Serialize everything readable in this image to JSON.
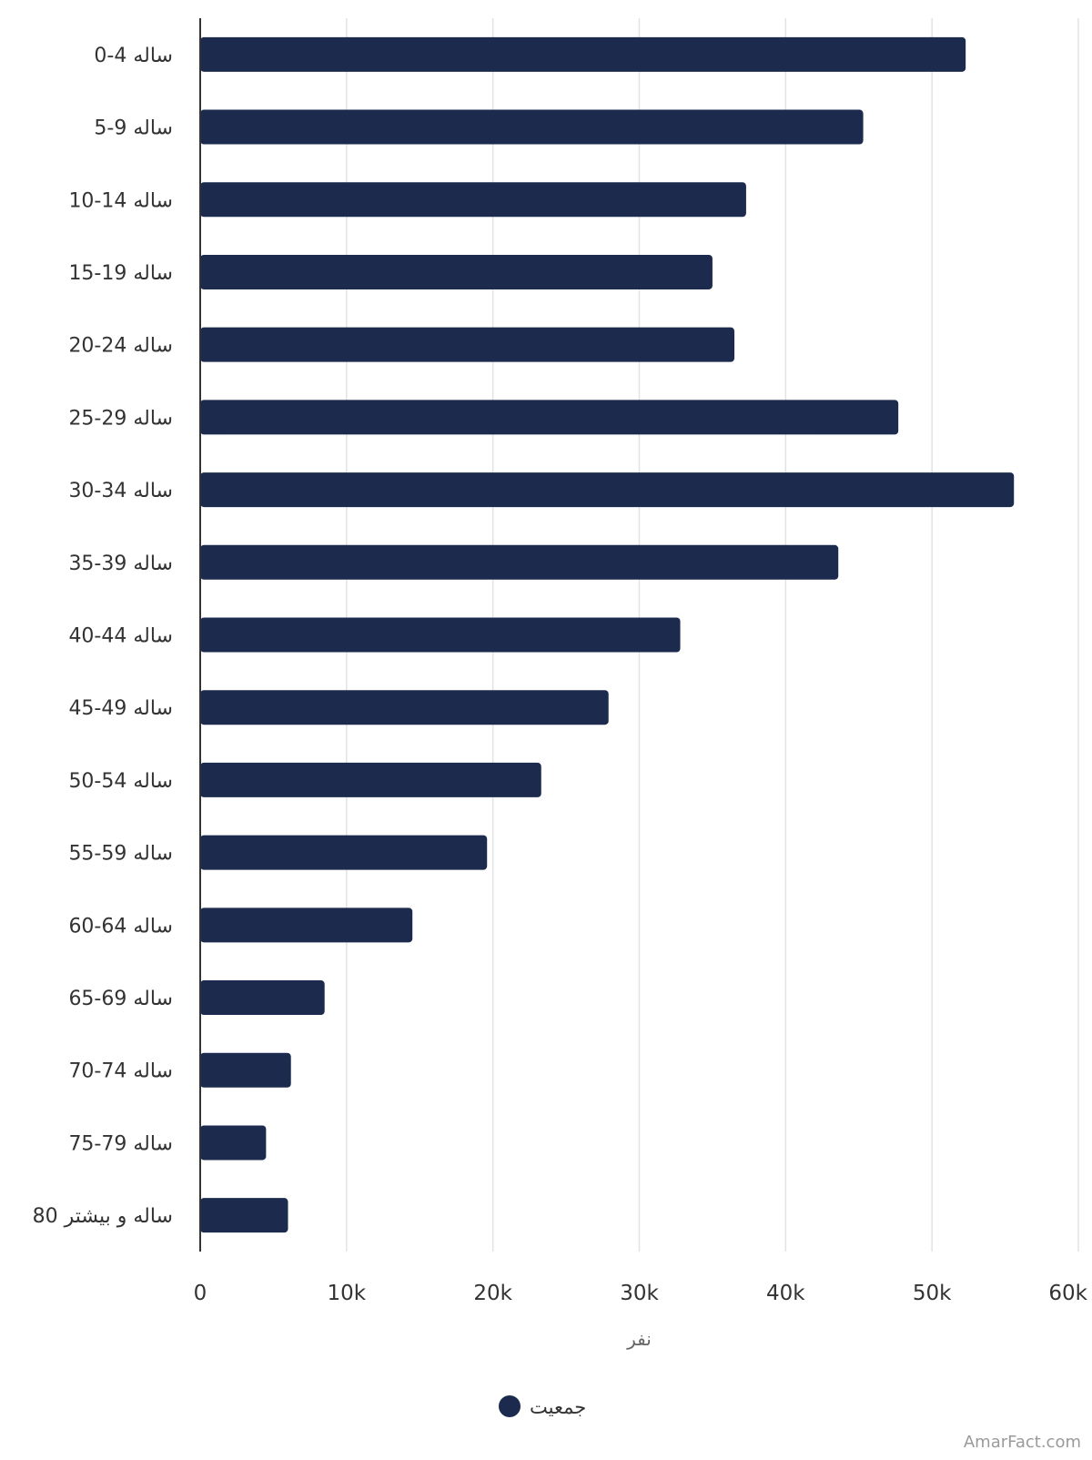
{
  "chart_data": {
    "type": "bar",
    "orientation": "horizontal",
    "categories": [
      "0-4 ساله",
      "5-9 ساله",
      "10-14 ساله",
      "15-19 ساله",
      "20-24 ساله",
      "25-29 ساله",
      "30-34 ساله",
      "35-39 ساله",
      "40-44 ساله",
      "45-49 ساله",
      "50-54 ساله",
      "55-59 ساله",
      "60-64 ساله",
      "65-69 ساله",
      "70-74 ساله",
      "75-79 ساله",
      "80 ساله و بیشتر"
    ],
    "series": [
      {
        "name": "جمعیت",
        "values": [
          52300,
          45300,
          37300,
          35000,
          36500,
          47700,
          55600,
          43600,
          32800,
          27900,
          23300,
          19600,
          14500,
          8500,
          6200,
          4500,
          6000
        ]
      }
    ],
    "xlim": [
      0,
      60000
    ],
    "xticks": [
      0,
      10000,
      20000,
      30000,
      40000,
      50000,
      60000
    ],
    "xtick_labels": [
      "0",
      "10k",
      "20k",
      "30k",
      "40k",
      "50k",
      "60k"
    ],
    "xlabel": "نفر",
    "ylabel": "",
    "title": "",
    "grid": true,
    "legend_position": "bottom-center",
    "bar_color": "#1c2b4d",
    "grid_color": "#e3e3e3"
  },
  "watermark": "AmarFact.com"
}
